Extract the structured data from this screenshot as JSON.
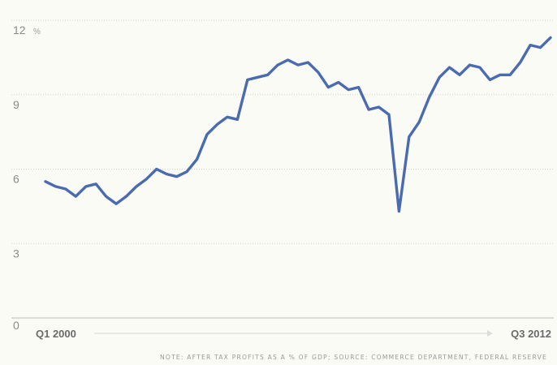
{
  "chart_data": {
    "type": "line",
    "title": "",
    "xlabel": "",
    "ylabel": "",
    "ylim": [
      0,
      12
    ],
    "y_ticks": [
      0,
      3,
      6,
      9,
      12
    ],
    "y_tick_labels": [
      "0",
      "3",
      "6",
      "9",
      "12"
    ],
    "y_unit": "%",
    "x_start_label": "Q1 2000",
    "x_end_label": "Q3 2012",
    "grid": true,
    "series": [
      {
        "color": "#4a6bb0",
        "values": [
          5.5,
          5.3,
          5.2,
          4.9,
          5.3,
          5.4,
          4.9,
          4.6,
          4.9,
          5.3,
          5.6,
          6.0,
          5.8,
          5.7,
          5.9,
          6.4,
          7.4,
          7.8,
          8.1,
          8.0,
          9.6,
          9.7,
          9.8,
          10.2,
          10.4,
          10.2,
          10.3,
          9.9,
          9.3,
          9.5,
          9.2,
          9.3,
          8.4,
          8.5,
          8.2,
          4.3,
          7.3,
          7.9,
          8.9,
          9.7,
          10.1,
          9.8,
          10.2,
          10.1,
          9.6,
          9.8,
          9.8,
          10.3,
          11.0,
          10.9,
          11.3
        ]
      }
    ],
    "note": "NOTE: AFTER TAX PROFITS AS A % OF GDP; SOURCE: COMMERCE DEPARTMENT, FEDERAL RESERVE"
  }
}
